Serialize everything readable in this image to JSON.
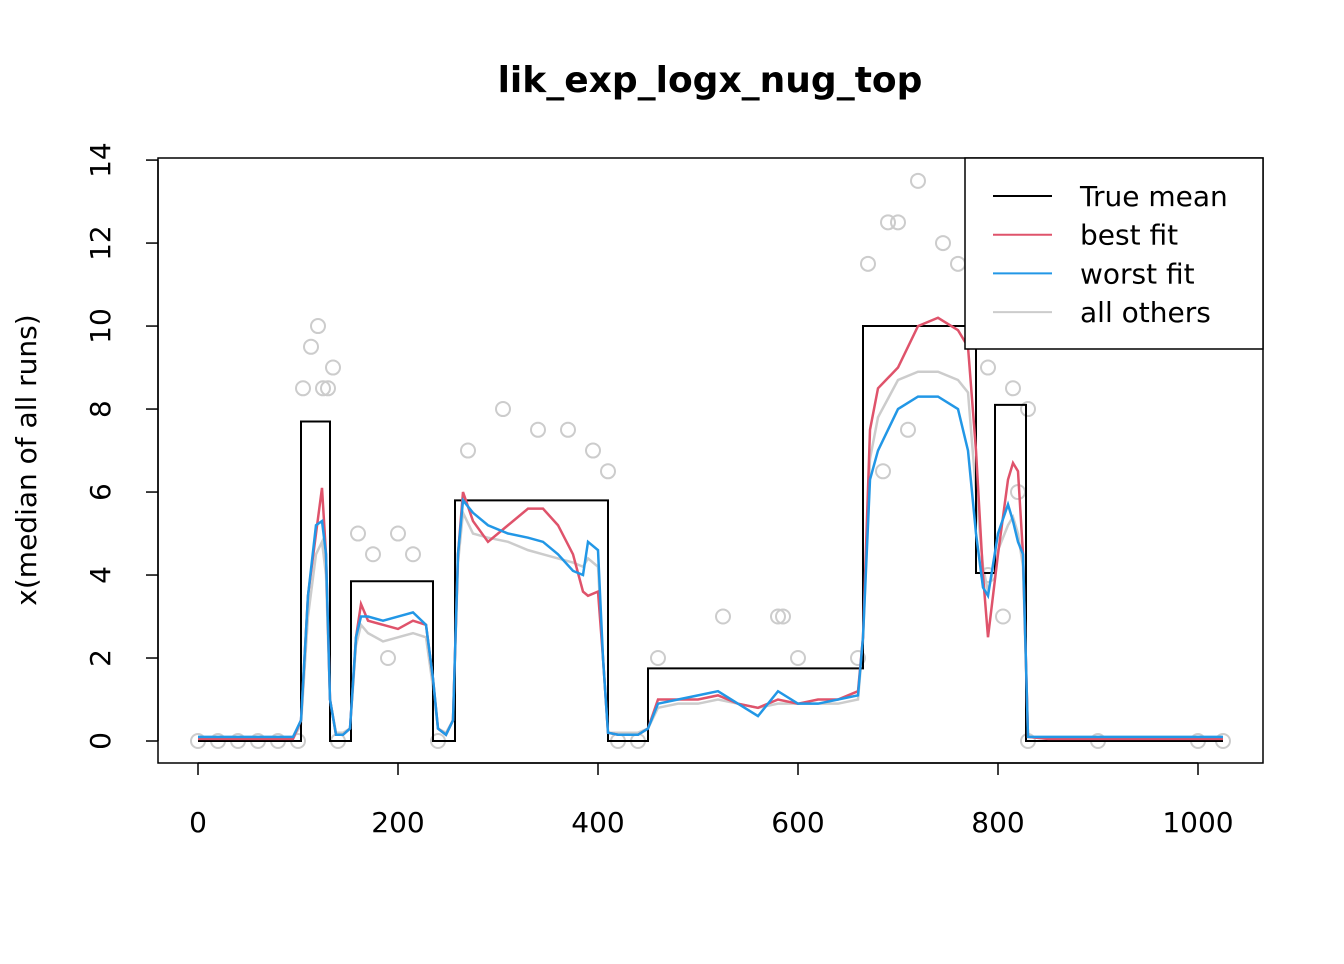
{
  "chart_data": {
    "type": "line",
    "title": "lik_exp_logx_nug_top",
    "y_label": "x(median of all runs)",
    "xlim": [
      -40,
      1065
    ],
    "ylim": [
      -0.53,
      14.05
    ],
    "xticks": [
      0,
      200,
      400,
      600,
      800,
      1000
    ],
    "yticks": [
      0,
      2,
      4,
      6,
      8,
      10,
      12,
      14
    ],
    "legend_position": "topright",
    "points": {
      "color": "#cccccc",
      "x": [
        0,
        20,
        40,
        60,
        80,
        100,
        140,
        240,
        420,
        440,
        830,
        900,
        1000,
        1025,
        120,
        113,
        105,
        125,
        130,
        135,
        160,
        175,
        200,
        215,
        190,
        270,
        305,
        340,
        370,
        395,
        410,
        525,
        580,
        585,
        460,
        600,
        660,
        720,
        690,
        700,
        745,
        670,
        760,
        790,
        815,
        830,
        820,
        790,
        805,
        710,
        685
      ],
      "values": [
        0,
        0,
        0,
        0,
        0,
        0,
        0,
        0,
        0,
        0,
        0,
        0,
        0,
        0,
        10,
        9.5,
        8.5,
        8.5,
        8.5,
        9,
        5,
        4.5,
        5,
        4.5,
        2,
        7,
        8,
        7.5,
        7.5,
        7,
        6.5,
        3,
        3,
        3,
        2,
        2,
        2,
        13.5,
        12.5,
        12.5,
        12,
        11.5,
        11.5,
        9,
        8.5,
        8,
        6,
        4,
        3,
        7.5,
        6.5
      ]
    },
    "series": [
      {
        "name": "True mean",
        "color": "#000000",
        "x": [
          0,
          103,
          103,
          132,
          132,
          153,
          153,
          235,
          235,
          257,
          257,
          410,
          410,
          450,
          450,
          665,
          665,
          778,
          778,
          797,
          797,
          828,
          828,
          1025
        ],
        "values": [
          0,
          0,
          7.7,
          7.7,
          0,
          0,
          3.85,
          3.85,
          0,
          0,
          5.8,
          5.8,
          0,
          0,
          1.75,
          1.75,
          10,
          10,
          4.05,
          4.05,
          8.1,
          8.1,
          0,
          0
        ]
      },
      {
        "name": "best fit",
        "color": "#df536b",
        "x": [
          0,
          50,
          95,
          103,
          110,
          118,
          124,
          128,
          132,
          138,
          145,
          152,
          158,
          163,
          170,
          185,
          200,
          215,
          228,
          235,
          240,
          248,
          255,
          260,
          265,
          275,
          290,
          310,
          330,
          345,
          360,
          375,
          385,
          390,
          400,
          405,
          410,
          420,
          440,
          450,
          460,
          480,
          500,
          520,
          540,
          560,
          580,
          600,
          620,
          640,
          660,
          665,
          672,
          680,
          700,
          720,
          740,
          760,
          770,
          778,
          785,
          790,
          800,
          810,
          815,
          820,
          825,
          830,
          850,
          1025
        ],
        "values": [
          0.05,
          0.05,
          0.05,
          0.5,
          3.5,
          5.0,
          6.1,
          4.5,
          1.0,
          0.15,
          0.15,
          0.3,
          2.5,
          3.3,
          2.9,
          2.8,
          2.7,
          2.9,
          2.8,
          1.5,
          0.3,
          0.15,
          0.5,
          4.5,
          6.0,
          5.3,
          4.8,
          5.2,
          5.6,
          5.6,
          5.2,
          4.5,
          3.6,
          3.5,
          3.6,
          2.0,
          0.2,
          0.15,
          0.15,
          0.3,
          1.0,
          1.0,
          1.0,
          1.1,
          0.9,
          0.8,
          1.0,
          0.9,
          1.0,
          1.0,
          1.2,
          2.5,
          7.5,
          8.5,
          9.0,
          10.0,
          10.2,
          9.9,
          9.5,
          7.0,
          4.0,
          2.5,
          4.5,
          6.3,
          6.7,
          6.5,
          4.5,
          0.1,
          0.05,
          0.05
        ]
      },
      {
        "name": "worst fit",
        "color": "#2297e6",
        "x": [
          0,
          50,
          95,
          103,
          110,
          118,
          124,
          128,
          132,
          138,
          145,
          152,
          158,
          163,
          170,
          185,
          200,
          215,
          228,
          235,
          240,
          248,
          255,
          260,
          265,
          275,
          290,
          310,
          330,
          345,
          360,
          375,
          385,
          390,
          400,
          405,
          410,
          420,
          440,
          450,
          460,
          480,
          500,
          520,
          540,
          560,
          580,
          600,
          620,
          640,
          660,
          665,
          672,
          680,
          700,
          720,
          740,
          760,
          770,
          778,
          785,
          790,
          800,
          810,
          815,
          820,
          825,
          830,
          850,
          1025
        ],
        "values": [
          0.1,
          0.1,
          0.1,
          0.5,
          3.5,
          5.2,
          5.3,
          4.5,
          1.0,
          0.15,
          0.15,
          0.3,
          2.5,
          3.0,
          3.0,
          2.9,
          3.0,
          3.1,
          2.8,
          1.5,
          0.3,
          0.15,
          0.5,
          4.5,
          5.8,
          5.5,
          5.2,
          5.0,
          4.9,
          4.8,
          4.5,
          4.1,
          4.0,
          4.8,
          4.6,
          2.0,
          0.2,
          0.15,
          0.15,
          0.3,
          0.9,
          1.0,
          1.1,
          1.2,
          0.9,
          0.6,
          1.2,
          0.9,
          0.9,
          1.0,
          1.1,
          2.5,
          6.3,
          7.0,
          8.0,
          8.3,
          8.3,
          8.0,
          7.0,
          5.0,
          3.7,
          3.5,
          5.0,
          5.7,
          5.3,
          4.8,
          4.5,
          0.1,
          0.1,
          0.1
        ]
      },
      {
        "name": "all others",
        "color": "#cccccc",
        "x": [
          0,
          50,
          95,
          103,
          110,
          118,
          124,
          128,
          132,
          138,
          145,
          152,
          158,
          163,
          170,
          185,
          200,
          215,
          228,
          235,
          240,
          248,
          255,
          260,
          265,
          275,
          290,
          310,
          330,
          345,
          360,
          375,
          385,
          390,
          400,
          405,
          410,
          420,
          440,
          450,
          460,
          480,
          500,
          520,
          540,
          560,
          580,
          600,
          620,
          640,
          660,
          665,
          672,
          680,
          700,
          720,
          740,
          760,
          770,
          778,
          785,
          790,
          800,
          810,
          815,
          820,
          825,
          830,
          850,
          1025
        ],
        "values": [
          0.05,
          0.05,
          0.05,
          0.4,
          3.0,
          4.5,
          4.8,
          4.0,
          1.0,
          0.2,
          0.2,
          0.3,
          2.3,
          2.8,
          2.6,
          2.4,
          2.5,
          2.6,
          2.5,
          1.3,
          0.3,
          0.2,
          0.5,
          4.3,
          5.5,
          5.0,
          4.9,
          4.8,
          4.6,
          4.5,
          4.4,
          4.3,
          4.2,
          4.4,
          4.2,
          2.0,
          0.2,
          0.2,
          0.2,
          0.3,
          0.8,
          0.9,
          0.9,
          1.0,
          0.9,
          0.8,
          0.9,
          0.9,
          0.9,
          0.9,
          1.0,
          2.4,
          6.8,
          7.8,
          8.7,
          8.9,
          8.9,
          8.7,
          8.4,
          6.0,
          4.2,
          3.6,
          4.6,
          5.2,
          5.4,
          5.0,
          4.2,
          0.1,
          0.05,
          0.05
        ]
      }
    ]
  }
}
